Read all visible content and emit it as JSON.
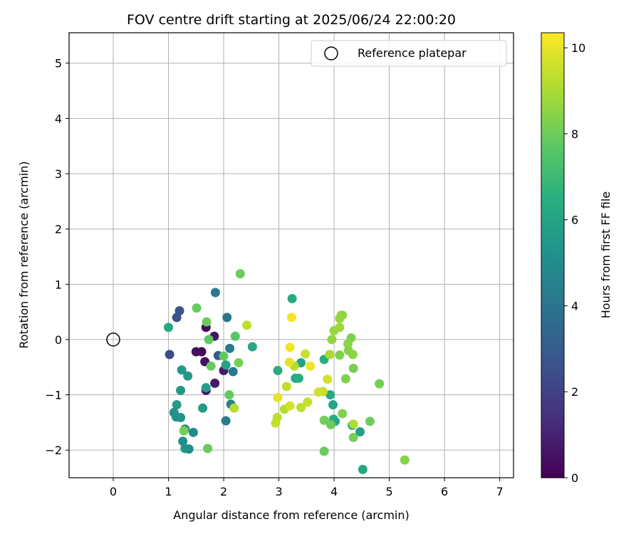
{
  "chart_data": {
    "type": "scatter",
    "title": "FOV centre drift starting at 2025/06/24 22:00:20",
    "xlabel": "Angular distance from reference (arcmin)",
    "ylabel": "Rotation from reference (arcmin)",
    "xlim": [
      -0.8,
      7.25
    ],
    "ylim": [
      -2.5,
      5.55
    ],
    "x_ticks": [
      "0",
      "1",
      "2",
      "3",
      "4",
      "5",
      "6",
      "7"
    ],
    "y_ticks": [
      "−2",
      "−1",
      "0",
      "1",
      "2",
      "3",
      "4",
      "5"
    ],
    "grid": true,
    "legend": {
      "position": "top-right",
      "entries": [
        "Reference platepar"
      ]
    },
    "colorbar": {
      "label": "Hours from first FF file",
      "range": [
        0,
        10.35
      ],
      "ticks": [
        "0",
        "2",
        "4",
        "6",
        "8",
        "10"
      ],
      "colormap": "viridis"
    },
    "reference_point": {
      "x": 0,
      "y": 0
    },
    "points": [
      {
        "x": 1.6,
        "y": -0.22,
        "t": 0.2
      },
      {
        "x": 1.68,
        "y": 0.22,
        "t": 0.3
      },
      {
        "x": 1.66,
        "y": -0.4,
        "t": 0.5
      },
      {
        "x": 1.68,
        "y": -0.92,
        "t": 0.6
      },
      {
        "x": 1.84,
        "y": -0.79,
        "t": 0.7
      },
      {
        "x": 1.83,
        "y": 0.06,
        "t": 0.6
      },
      {
        "x": 1.5,
        "y": -0.22,
        "t": 0.4
      },
      {
        "x": 2.0,
        "y": -0.56,
        "t": 0.8
      },
      {
        "x": 1.02,
        "y": -0.27,
        "t": 2.4
      },
      {
        "x": 1.15,
        "y": 0.4,
        "t": 2.6
      },
      {
        "x": 1.2,
        "y": 0.52,
        "t": 2.7
      },
      {
        "x": 1.9,
        "y": -0.29,
        "t": 3.0
      },
      {
        "x": 1.85,
        "y": 0.85,
        "t": 4.2
      },
      {
        "x": 2.06,
        "y": 0.4,
        "t": 4.0
      },
      {
        "x": 2.11,
        "y": -0.16,
        "t": 4.3
      },
      {
        "x": 2.17,
        "y": -0.58,
        "t": 4.2
      },
      {
        "x": 2.04,
        "y": -1.47,
        "t": 4.3
      },
      {
        "x": 2.13,
        "y": -1.17,
        "t": 4.5
      },
      {
        "x": 1.45,
        "y": -1.68,
        "t": 4.8
      },
      {
        "x": 1.37,
        "y": -1.98,
        "t": 5.0
      },
      {
        "x": 1.3,
        "y": -1.62,
        "t": 4.9
      },
      {
        "x": 1.26,
        "y": -1.84,
        "t": 5.1
      },
      {
        "x": 1.3,
        "y": -1.97,
        "t": 5.2
      },
      {
        "x": 1.1,
        "y": -1.32,
        "t": 5.1
      },
      {
        "x": 1.14,
        "y": -1.4,
        "t": 5.2
      },
      {
        "x": 1.22,
        "y": -1.41,
        "t": 5.3
      },
      {
        "x": 1.22,
        "y": -0.92,
        "t": 5.5
      },
      {
        "x": 1.24,
        "y": -0.55,
        "t": 5.6
      },
      {
        "x": 1.35,
        "y": -0.66,
        "t": 5.5
      },
      {
        "x": 1.15,
        "y": -1.18,
        "t": 5.7
      },
      {
        "x": 1.62,
        "y": -1.24,
        "t": 5.6
      },
      {
        "x": 1.68,
        "y": -0.87,
        "t": 5.8
      },
      {
        "x": 2.04,
        "y": -0.46,
        "t": 5.9
      },
      {
        "x": 1.0,
        "y": 0.22,
        "t": 6.1
      },
      {
        "x": 2.52,
        "y": -0.13,
        "t": 6.2
      },
      {
        "x": 3.24,
        "y": 0.74,
        "t": 6.3
      },
      {
        "x": 2.98,
        "y": -0.56,
        "t": 6.4
      },
      {
        "x": 3.3,
        "y": -0.7,
        "t": 6.2
      },
      {
        "x": 3.36,
        "y": -0.7,
        "t": 6.5
      },
      {
        "x": 3.4,
        "y": -0.42,
        "t": 6.0
      },
      {
        "x": 3.82,
        "y": -0.36,
        "t": 6.4
      },
      {
        "x": 3.93,
        "y": -1.0,
        "t": 6.2
      },
      {
        "x": 3.98,
        "y": -1.18,
        "t": 6.1
      },
      {
        "x": 3.99,
        "y": -1.44,
        "t": 6.4
      },
      {
        "x": 4.02,
        "y": -1.48,
        "t": 6.2
      },
      {
        "x": 4.33,
        "y": -1.55,
        "t": 5.9
      },
      {
        "x": 4.47,
        "y": -1.67,
        "t": 5.8
      },
      {
        "x": 4.52,
        "y": -2.35,
        "t": 6.2
      },
      {
        "x": 2.0,
        "y": -0.3,
        "t": 7.8
      },
      {
        "x": 2.3,
        "y": 1.19,
        "t": 8.0
      },
      {
        "x": 1.51,
        "y": 0.57,
        "t": 7.9
      },
      {
        "x": 1.69,
        "y": 0.32,
        "t": 8.0
      },
      {
        "x": 1.73,
        "y": 0.0,
        "t": 7.7
      },
      {
        "x": 1.77,
        "y": -0.48,
        "t": 7.9
      },
      {
        "x": 2.1,
        "y": -1.0,
        "t": 7.8
      },
      {
        "x": 2.21,
        "y": 0.06,
        "t": 7.6
      },
      {
        "x": 2.27,
        "y": -0.42,
        "t": 8.2
      },
      {
        "x": 1.28,
        "y": -1.65,
        "t": 8.1
      },
      {
        "x": 1.71,
        "y": -1.97,
        "t": 7.9
      },
      {
        "x": 3.82,
        "y": -1.46,
        "t": 8.1
      },
      {
        "x": 3.82,
        "y": -2.02,
        "t": 7.9
      },
      {
        "x": 3.94,
        "y": -1.54,
        "t": 8.0
      },
      {
        "x": 3.96,
        "y": 0.0,
        "t": 8.6
      },
      {
        "x": 4.0,
        "y": 0.16,
        "t": 8.7
      },
      {
        "x": 4.1,
        "y": 0.22,
        "t": 8.8
      },
      {
        "x": 4.1,
        "y": 0.38,
        "t": 8.7
      },
      {
        "x": 4.15,
        "y": 0.44,
        "t": 8.5
      },
      {
        "x": 4.13,
        "y": 0.44,
        "t": 8.6
      },
      {
        "x": 4.21,
        "y": -0.71,
        "t": 8.3
      },
      {
        "x": 4.25,
        "y": -0.08,
        "t": 8.5
      },
      {
        "x": 4.26,
        "y": -0.2,
        "t": 8.4
      },
      {
        "x": 4.31,
        "y": 0.03,
        "t": 8.3
      },
      {
        "x": 4.34,
        "y": -0.27,
        "t": 8.5
      },
      {
        "x": 4.35,
        "y": -0.52,
        "t": 8.2
      },
      {
        "x": 4.1,
        "y": -0.28,
        "t": 8.3
      },
      {
        "x": 4.15,
        "y": -1.34,
        "t": 8.3
      },
      {
        "x": 4.35,
        "y": -1.77,
        "t": 8.1
      },
      {
        "x": 4.65,
        "y": -1.48,
        "t": 8.0
      },
      {
        "x": 4.82,
        "y": -0.8,
        "t": 8.1
      },
      {
        "x": 5.28,
        "y": -2.18,
        "t": 8.4
      },
      {
        "x": 3.92,
        "y": -0.27,
        "t": 9.0
      },
      {
        "x": 3.8,
        "y": -0.94,
        "t": 9.4
      },
      {
        "x": 4.35,
        "y": -1.53,
        "t": 9.1
      },
      {
        "x": 2.42,
        "y": 0.26,
        "t": 9.3
      },
      {
        "x": 2.19,
        "y": -1.24,
        "t": 9.2
      },
      {
        "x": 2.94,
        "y": -1.51,
        "t": 9.4
      },
      {
        "x": 2.97,
        "y": -1.41,
        "t": 9.3
      },
      {
        "x": 3.1,
        "y": -1.26,
        "t": 9.2
      },
      {
        "x": 3.14,
        "y": -0.85,
        "t": 9.4
      },
      {
        "x": 3.2,
        "y": -1.2,
        "t": 9.6
      },
      {
        "x": 3.28,
        "y": -0.48,
        "t": 9.2
      },
      {
        "x": 3.4,
        "y": -1.23,
        "t": 9.3
      },
      {
        "x": 3.48,
        "y": -0.26,
        "t": 9.5
      },
      {
        "x": 3.52,
        "y": -1.13,
        "t": 9.4
      },
      {
        "x": 3.88,
        "y": -0.72,
        "t": 9.7
      },
      {
        "x": 3.72,
        "y": -0.95,
        "t": 9.6
      },
      {
        "x": 3.2,
        "y": -0.14,
        "t": 10.1
      },
      {
        "x": 3.19,
        "y": -0.41,
        "t": 10.0
      },
      {
        "x": 3.23,
        "y": 0.4,
        "t": 10.2
      },
      {
        "x": 2.98,
        "y": -1.05,
        "t": 10.0
      },
      {
        "x": 3.57,
        "y": -0.48,
        "t": 10.1
      }
    ]
  }
}
